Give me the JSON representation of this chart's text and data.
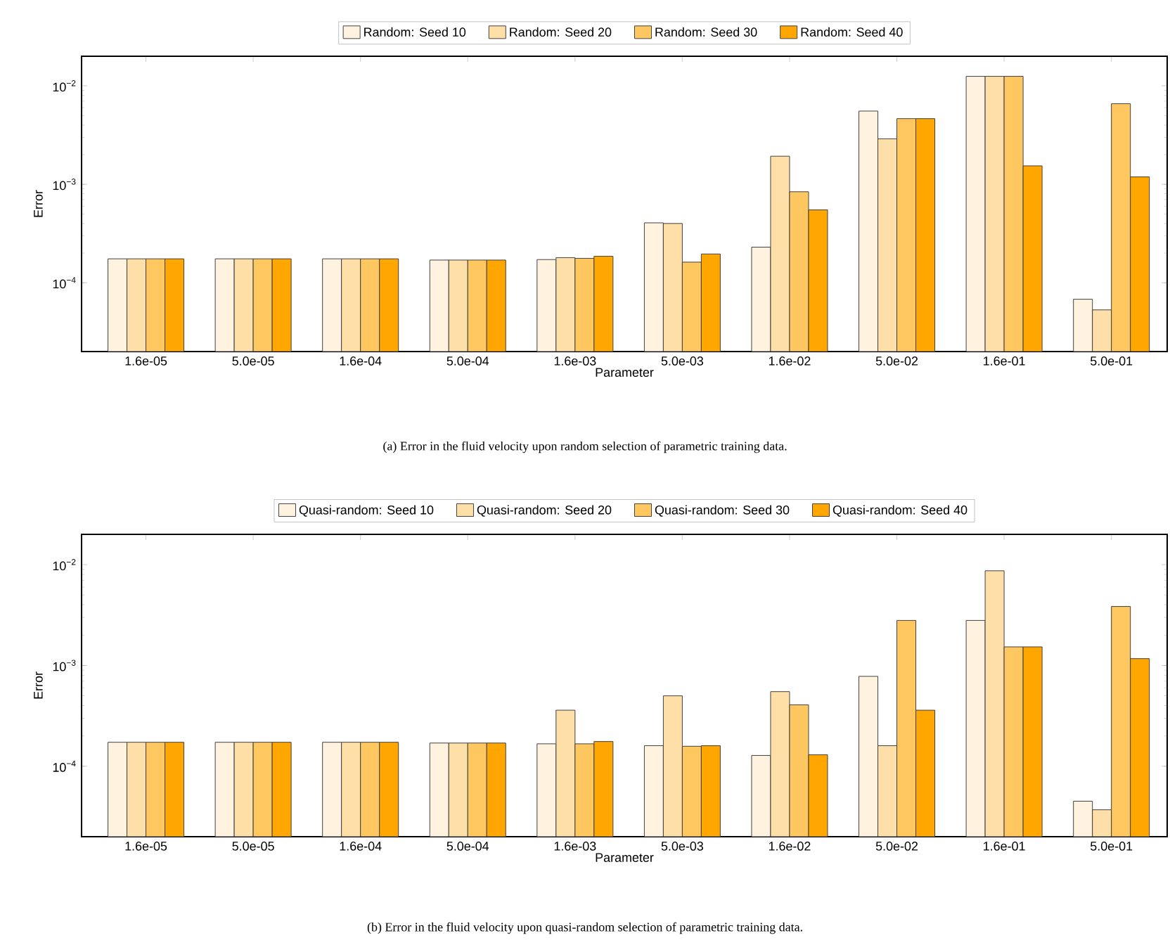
{
  "chart_data": [
    {
      "type": "bar",
      "xlabel": "Parameter",
      "ylabel": "Error",
      "log": "y",
      "legend": "top",
      "categories": [
        "1.6e-05",
        "5.0e-05",
        "1.6e-04",
        "5.0e-04",
        "1.6e-03",
        "5.0e-03",
        "1.6e-02",
        "5.0e-02",
        "1.6e-01",
        "5.0e-01"
      ],
      "ylim": [
        2e-05,
        0.02
      ],
      "yticks": [
        {
          "value": 0.0001,
          "label": "10$^{−4}$"
        },
        {
          "value": 0.001,
          "label": "10$^{−3}$"
        },
        {
          "value": 0.01,
          "label": "10$^{−2}$"
        }
      ],
      "series": [
        {
          "name": "Random: Seed 10",
          "color": "#fff3e0",
          "values": [
            0.000175,
            0.000175,
            0.000175,
            0.00017,
            0.000172,
            0.000406,
            0.00023,
            0.00555,
            0.0125,
            6.8e-05
          ]
        },
        {
          "name": "Random: Seed 20",
          "color": "#ffdfa8",
          "values": [
            0.000175,
            0.000175,
            0.000175,
            0.00017,
            0.00018,
            0.0004,
            0.00193,
            0.0029,
            0.0125,
            5.3e-05
          ]
        },
        {
          "name": "Random: Seed 30",
          "color": "#ffc75f",
          "values": [
            0.000175,
            0.000175,
            0.000175,
            0.00017,
            0.000177,
            0.000162,
            0.00084,
            0.00465,
            0.0125,
            0.0066
          ]
        },
        {
          "name": "Random: Seed 40",
          "color": "#ffa600",
          "values": [
            0.000175,
            0.000175,
            0.000175,
            0.00017,
            0.000186,
            0.000196,
            0.00055,
            0.00465,
            0.00154,
            0.00119
          ]
        }
      ],
      "annotations": [
        "(a) Error in the fluid velocity upon random selection of parametric training data."
      ]
    },
    {
      "type": "bar",
      "xlabel": "Parameter",
      "ylabel": "Error",
      "log": "y",
      "legend": "top",
      "categories": [
        "1.6e-05",
        "5.0e-05",
        "1.6e-04",
        "5.0e-04",
        "1.6e-03",
        "5.0e-03",
        "1.6e-02",
        "5.0e-02",
        "1.6e-01",
        "5.0e-01"
      ],
      "ylim": [
        2e-05,
        0.02
      ],
      "yticks": [
        {
          "value": 0.0001,
          "label": "10$^{−4}$"
        },
        {
          "value": 0.001,
          "label": "10$^{−3}$"
        },
        {
          "value": 0.01,
          "label": "10$^{−2}$"
        }
      ],
      "series": [
        {
          "name": "Quasi-random: Seed 10",
          "color": "#fff3e0",
          "values": [
            0.000173,
            0.000173,
            0.000173,
            0.00017,
            0.000167,
            0.00016,
            0.000128,
            0.00078,
            0.0028,
            4.5e-05
          ]
        },
        {
          "name": "Quasi-random: Seed 20",
          "color": "#ffdfa8",
          "values": [
            0.000173,
            0.000173,
            0.000173,
            0.00017,
            0.00036,
            0.0005,
            0.00055,
            0.00016,
            0.0087,
            3.7e-05
          ]
        },
        {
          "name": "Quasi-random: Seed 30",
          "color": "#ffc75f",
          "values": [
            0.000173,
            0.000173,
            0.000173,
            0.00017,
            0.000167,
            0.000158,
            0.000407,
            0.0028,
            0.00153,
            0.00385
          ]
        },
        {
          "name": "Quasi-random: Seed 40",
          "color": "#ffa600",
          "values": [
            0.000173,
            0.000173,
            0.000173,
            0.00017,
            0.000176,
            0.00016,
            0.00013,
            0.00036,
            0.00153,
            0.00117
          ]
        }
      ],
      "annotations": [
        "(b) Error in the fluid velocity upon quasi-random selection of parametric training data."
      ]
    }
  ]
}
